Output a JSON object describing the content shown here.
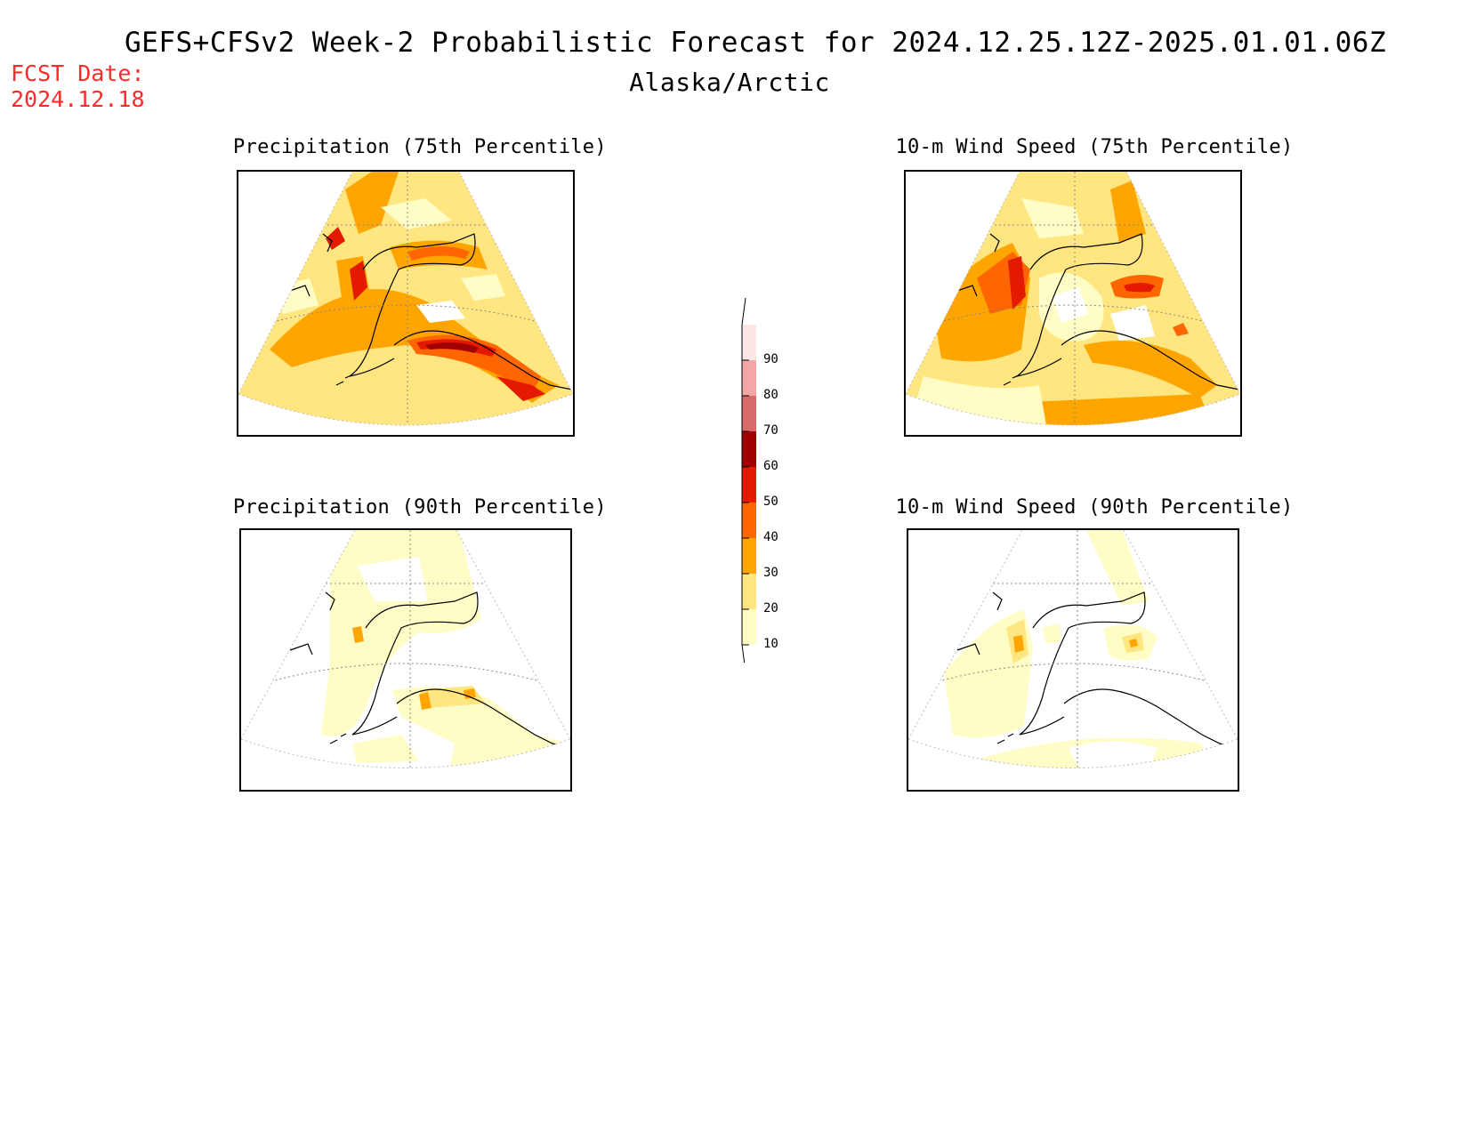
{
  "header": {
    "title": "GEFS+CFSv2 Week-2 Probabilistic Forecast for 2024.12.25.12Z-2025.01.01.06Z",
    "subtitle": "Alaska/Arctic",
    "fcst_label": "FCST Date:",
    "fcst_date": "2024.12.18"
  },
  "panels": [
    {
      "id": "precip75",
      "title": "Precipitation (75th Percentile)"
    },
    {
      "id": "wind75",
      "title": "10-m Wind Speed (75th Percentile)"
    },
    {
      "id": "precip90",
      "title": "Precipitation (90th Percentile)"
    },
    {
      "id": "wind90",
      "title": "10-m Wind Speed (90th Percentile)"
    }
  ],
  "colorbar": {
    "levels": [
      "10",
      "20",
      "30",
      "40",
      "50",
      "60",
      "70",
      "80",
      "90"
    ],
    "colors": [
      "#fffdc6",
      "#ffe680",
      "#ffa500",
      "#ff6600",
      "#e41a00",
      "#a10000",
      "#d96a6a",
      "#f4a5a5",
      "#fde6e6"
    ]
  }
}
